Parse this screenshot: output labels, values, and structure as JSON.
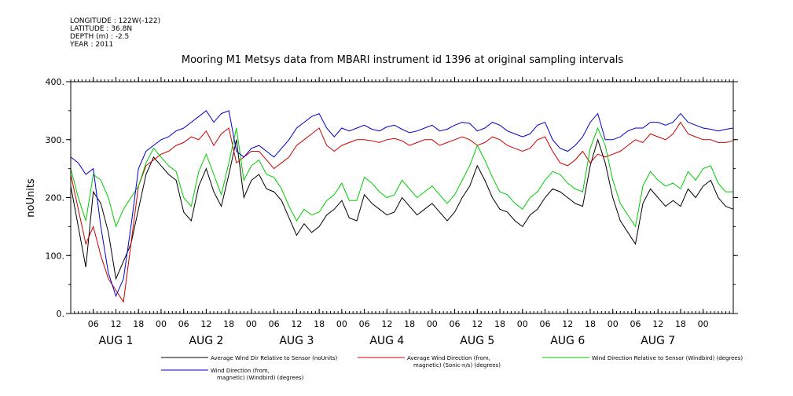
{
  "header": {
    "longitude": "LONGITUDE : 122W(-122)",
    "latitude": "LATITUDE : 36.8N",
    "depth": "DEPTH (m) : -2.5",
    "year": "YEAR : 2011"
  },
  "chart_data": {
    "type": "line",
    "title": "Mooring M1 Metsys data from MBARI instrument id 1396 at original sampling intervals",
    "ylabel": "noUnits",
    "xlabel": "",
    "ylim": [
      0,
      400
    ],
    "yticks": [
      "0.",
      "100.",
      "200.",
      "300.",
      "400."
    ],
    "x_unit": "hours since Aug 1 2011 00:00",
    "xlim": [
      0,
      176
    ],
    "hour_ticks": [
      "06",
      "12",
      "18",
      "00",
      "06",
      "12",
      "18",
      "00",
      "06",
      "12",
      "18",
      "00",
      "06",
      "12",
      "18",
      "00",
      "06",
      "12",
      "18",
      "00",
      "06",
      "12",
      "18",
      "00",
      "06",
      "12",
      "18",
      "00"
    ],
    "hour_tick_x": [
      6,
      12,
      18,
      24,
      30,
      36,
      42,
      48,
      54,
      60,
      66,
      72,
      78,
      84,
      90,
      96,
      102,
      108,
      114,
      120,
      126,
      132,
      138,
      144,
      150,
      156,
      162,
      168
    ],
    "day_labels": [
      "AUG  1",
      "AUG  2",
      "AUG  3",
      "AUG  4",
      "AUG  5",
      "AUG  6",
      "AUG  7"
    ],
    "day_label_x": [
      12,
      36,
      60,
      84,
      108,
      132,
      156
    ],
    "grid": false,
    "legend_position": "bottom",
    "series": [
      {
        "name": "Average Wind Dir Relative to Sensor (noUnits)",
        "legend_lines": [
          "Average Wind Dir Relative to Sensor (noUnits)"
        ],
        "color": "#000000",
        "x": [
          0,
          2,
          4,
          6,
          8,
          10,
          12,
          14,
          16,
          18,
          20,
          22,
          24,
          26,
          28,
          30,
          32,
          34,
          36,
          38,
          40,
          42,
          44,
          46,
          48,
          50,
          52,
          54,
          56,
          58,
          60,
          62,
          64,
          66,
          68,
          70,
          72,
          74,
          76,
          78,
          80,
          82,
          84,
          86,
          88,
          90,
          92,
          94,
          96,
          98,
          100,
          102,
          104,
          106,
          108,
          110,
          112,
          114,
          116,
          118,
          120,
          122,
          124,
          126,
          128,
          130,
          132,
          134,
          136,
          138,
          140,
          142,
          144,
          146,
          148,
          150,
          152,
          154,
          156,
          158,
          160,
          162,
          164,
          166,
          168,
          170,
          172,
          174,
          176
        ],
        "values": [
          220,
          150,
          80,
          210,
          190,
          140,
          60,
          90,
          120,
          180,
          240,
          270,
          255,
          240,
          230,
          175,
          160,
          220,
          250,
          210,
          185,
          240,
          300,
          200,
          230,
          240,
          215,
          210,
          195,
          165,
          135,
          155,
          140,
          150,
          170,
          180,
          195,
          165,
          160,
          205,
          190,
          180,
          170,
          175,
          200,
          185,
          170,
          180,
          190,
          175,
          160,
          175,
          200,
          220,
          255,
          230,
          200,
          180,
          175,
          160,
          150,
          170,
          180,
          200,
          215,
          210,
          200,
          190,
          185,
          255,
          300,
          260,
          200,
          160,
          140,
          120,
          190,
          215,
          200,
          185,
          195,
          185,
          215,
          200,
          220,
          230,
          200,
          185,
          180
        ]
      },
      {
        "name": "Average Wind Direction (from, magnetic) (Sonic-n/s) (degrees)",
        "legend_lines": [
          "Average Wind Direction (from,",
          "magnetic) (Sonic-n/s) (degrees)"
        ],
        "color": "#cc0000",
        "x": [
          0,
          2,
          4,
          6,
          8,
          10,
          12,
          14,
          16,
          18,
          20,
          22,
          24,
          26,
          28,
          30,
          32,
          34,
          36,
          38,
          40,
          42,
          44,
          46,
          48,
          50,
          52,
          54,
          56,
          58,
          60,
          62,
          64,
          66,
          68,
          70,
          72,
          74,
          76,
          78,
          80,
          82,
          84,
          86,
          88,
          90,
          92,
          94,
          96,
          98,
          100,
          102,
          104,
          106,
          108,
          110,
          112,
          114,
          116,
          118,
          120,
          122,
          124,
          126,
          128,
          130,
          132,
          134,
          136,
          138,
          140,
          142,
          144,
          146,
          148,
          150,
          152,
          154,
          156,
          158,
          160,
          162,
          164,
          166,
          168,
          170,
          172,
          174,
          176
        ],
        "values": [
          240,
          180,
          120,
          150,
          100,
          60,
          40,
          20,
          120,
          220,
          255,
          265,
          275,
          280,
          290,
          295,
          305,
          300,
          315,
          290,
          310,
          320,
          260,
          270,
          280,
          280,
          265,
          250,
          260,
          270,
          290,
          300,
          310,
          320,
          290,
          280,
          290,
          295,
          300,
          300,
          298,
          295,
          300,
          302,
          298,
          290,
          295,
          300,
          300,
          290,
          295,
          300,
          305,
          300,
          290,
          295,
          305,
          300,
          290,
          285,
          280,
          285,
          300,
          305,
          280,
          260,
          255,
          265,
          280,
          260,
          275,
          270,
          275,
          280,
          290,
          300,
          295,
          310,
          305,
          300,
          310,
          330,
          310,
          305,
          300,
          300,
          295,
          295,
          298
        ]
      },
      {
        "name": "Wind Direction Relative to Sensor (Windbird) (degrees)",
        "legend_lines": [
          "Wind Direction Relative to Sensor (Windbird) (degrees)"
        ],
        "color": "#00cc00",
        "x": [
          0,
          2,
          4,
          6,
          8,
          10,
          12,
          14,
          16,
          18,
          20,
          22,
          24,
          26,
          28,
          30,
          32,
          34,
          36,
          38,
          40,
          42,
          44,
          46,
          48,
          50,
          52,
          54,
          56,
          58,
          60,
          62,
          64,
          66,
          68,
          70,
          72,
          74,
          76,
          78,
          80,
          82,
          84,
          86,
          88,
          90,
          92,
          94,
          96,
          98,
          100,
          102,
          104,
          106,
          108,
          110,
          112,
          114,
          116,
          118,
          120,
          122,
          124,
          126,
          128,
          130,
          132,
          134,
          136,
          138,
          140,
          142,
          144,
          146,
          148,
          150,
          152,
          154,
          156,
          158,
          160,
          162,
          164,
          166,
          168,
          170,
          172,
          174,
          176
        ],
        "values": [
          250,
          200,
          160,
          240,
          230,
          200,
          150,
          180,
          200,
          220,
          260,
          285,
          270,
          255,
          245,
          200,
          185,
          245,
          275,
          240,
          205,
          260,
          320,
          230,
          255,
          265,
          240,
          235,
          215,
          185,
          160,
          180,
          170,
          175,
          195,
          205,
          225,
          195,
          195,
          235,
          225,
          210,
          200,
          205,
          230,
          215,
          200,
          210,
          220,
          205,
          190,
          205,
          230,
          255,
          290,
          265,
          235,
          210,
          205,
          190,
          180,
          200,
          210,
          230,
          245,
          240,
          225,
          215,
          210,
          285,
          320,
          290,
          230,
          190,
          170,
          150,
          220,
          245,
          230,
          220,
          225,
          215,
          245,
          230,
          250,
          255,
          225,
          210,
          210
        ]
      },
      {
        "name": "Wind Direction (from, magnetic) (Windbird) (degrees)",
        "legend_lines": [
          "Wind Direction (from,",
          "magnetic) (Windbird) (degrees)"
        ],
        "color": "#0000cc",
        "x": [
          0,
          2,
          4,
          6,
          8,
          10,
          12,
          14,
          16,
          18,
          20,
          22,
          24,
          26,
          28,
          30,
          32,
          34,
          36,
          38,
          40,
          42,
          44,
          46,
          48,
          50,
          52,
          54,
          56,
          58,
          60,
          62,
          64,
          66,
          68,
          70,
          72,
          74,
          76,
          78,
          80,
          82,
          84,
          86,
          88,
          90,
          92,
          94,
          96,
          98,
          100,
          102,
          104,
          106,
          108,
          110,
          112,
          114,
          116,
          118,
          120,
          122,
          124,
          126,
          128,
          130,
          132,
          134,
          136,
          138,
          140,
          142,
          144,
          146,
          148,
          150,
          152,
          154,
          156,
          158,
          160,
          162,
          164,
          166,
          168,
          170,
          172,
          174,
          176
        ],
        "values": [
          270,
          260,
          240,
          250,
          150,
          70,
          30,
          60,
          150,
          250,
          280,
          290,
          300,
          305,
          315,
          320,
          330,
          340,
          350,
          330,
          345,
          350,
          280,
          270,
          285,
          290,
          280,
          270,
          285,
          300,
          320,
          330,
          340,
          345,
          320,
          305,
          320,
          315,
          320,
          325,
          318,
          315,
          322,
          325,
          318,
          312,
          315,
          320,
          325,
          315,
          318,
          325,
          330,
          328,
          315,
          320,
          330,
          325,
          315,
          310,
          305,
          310,
          325,
          330,
          300,
          285,
          280,
          290,
          305,
          330,
          345,
          300,
          300,
          305,
          315,
          320,
          320,
          330,
          330,
          325,
          330,
          345,
          330,
          325,
          320,
          318,
          315,
          318,
          320
        ]
      }
    ]
  }
}
